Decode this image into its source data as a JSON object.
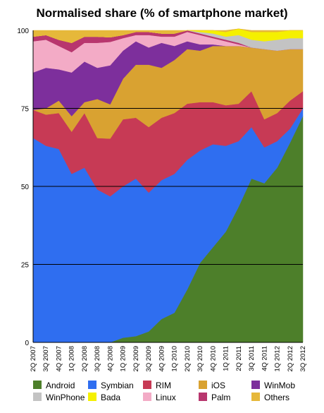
{
  "chart_data": {
    "type": "area",
    "stacked": true,
    "normalised": true,
    "title": "Normalised share (% of smartphone market)",
    "xlabel": "",
    "ylabel": "",
    "ylim": [
      0,
      100
    ],
    "yticks": [
      0,
      25,
      50,
      75,
      100
    ],
    "grid": "horizontal at 75, 50, 25",
    "legend_position": "bottom",
    "x": [
      "2Q 2007",
      "3Q 2007",
      "4Q 2007",
      "1Q 2008",
      "2Q 2008",
      "3Q 2008",
      "4Q 2008",
      "1Q 2009",
      "2Q 2009",
      "3Q 2009",
      "4Q 2009",
      "1Q 2010",
      "2Q 2010",
      "3Q 2010",
      "4Q 2010",
      "1Q 2011",
      "2Q 2011",
      "3Q 2011",
      "4Q 2011",
      "1Q 2012",
      "2Q 2012",
      "3Q 2012"
    ],
    "series": [
      {
        "name": "Android",
        "color": "#4d7f2a",
        "values": [
          0,
          0,
          0,
          0,
          0,
          0,
          0,
          1.5,
          2,
          3.5,
          7.5,
          9.5,
          17,
          25.5,
          30.5,
          35.5,
          43.5,
          52.5,
          51,
          56,
          64,
          72.5
        ]
      },
      {
        "name": "Symbian",
        "color": "#2f6ef0",
        "values": [
          65.5,
          63,
          62,
          54,
          56,
          49,
          46.8,
          48.5,
          50.5,
          44.5,
          44.5,
          44.5,
          41.5,
          36,
          33,
          27.5,
          21,
          16.5,
          11.5,
          8.5,
          4.5,
          2.5
        ]
      },
      {
        "name": "RIM",
        "color": "#c73a55",
        "values": [
          9,
          10,
          11.5,
          13.5,
          17.5,
          16.5,
          18.5,
          21.5,
          19.5,
          21,
          20,
          19.5,
          18,
          15.5,
          13.5,
          13,
          12,
          11.5,
          9,
          9,
          9,
          5.5
        ]
      },
      {
        "name": "iOS",
        "color": "#d9a231",
        "values": [
          0,
          2,
          4,
          5,
          3.5,
          12.5,
          11,
          13,
          17,
          20,
          16,
          17,
          17.5,
          16.5,
          18,
          19,
          18.5,
          14,
          22.5,
          20,
          16.5,
          13.5
        ]
      },
      {
        "name": "WinMob",
        "color": "#7d2f9c",
        "values": [
          12,
          13,
          10,
          14,
          13,
          10,
          12.5,
          9,
          7.5,
          5.5,
          8,
          4.5,
          2.5,
          2,
          0.5,
          0,
          0,
          0,
          0,
          0,
          0,
          0
        ]
      },
      {
        "name": "Linux",
        "color": "#f3abc6",
        "values": [
          10,
          9,
          7.5,
          6.5,
          6,
          8,
          7.5,
          4,
          2,
          4,
          2,
          3,
          3,
          3,
          2,
          1.5,
          0.5,
          0,
          0,
          0,
          0,
          0
        ]
      },
      {
        "name": "Palm",
        "color": "#b8366e",
        "values": [
          1.5,
          1.5,
          2,
          3,
          2,
          2,
          1.5,
          1,
          1,
          1,
          1,
          1,
          0.5,
          0.5,
          0.5,
          0.5,
          0.5,
          0,
          0,
          0,
          0,
          0
        ]
      },
      {
        "name": "WinPhone",
        "color": "#c3c3c3",
        "values": [
          0,
          0,
          0,
          0,
          0,
          0,
          0,
          0,
          0,
          0,
          0,
          0,
          0,
          0.5,
          1,
          1,
          2.5,
          2.5,
          2.5,
          3.5,
          3.5,
          3.5
        ]
      },
      {
        "name": "Bada",
        "color": "#f5f000",
        "values": [
          0,
          0,
          0,
          0,
          0,
          0,
          0,
          0,
          0,
          0,
          0,
          0,
          0,
          0.5,
          1,
          1.5,
          2,
          2.5,
          3,
          2.5,
          2.5,
          2.5
        ]
      },
      {
        "name": "Others",
        "color": "#e6b83a",
        "values": [
          2,
          1.5,
          3,
          4,
          2,
          2,
          2.2,
          1.5,
          0.5,
          0.5,
          1,
          1,
          0,
          0,
          0,
          0.5,
          0,
          0.5,
          0.5,
          0.5,
          0,
          0
        ]
      }
    ],
    "legend": [
      [
        "Android",
        "Symbian",
        "RIM",
        "iOS",
        "WinMob"
      ],
      [
        "WinPhone",
        "Bada",
        "Linux",
        "Palm",
        "Others"
      ]
    ]
  }
}
